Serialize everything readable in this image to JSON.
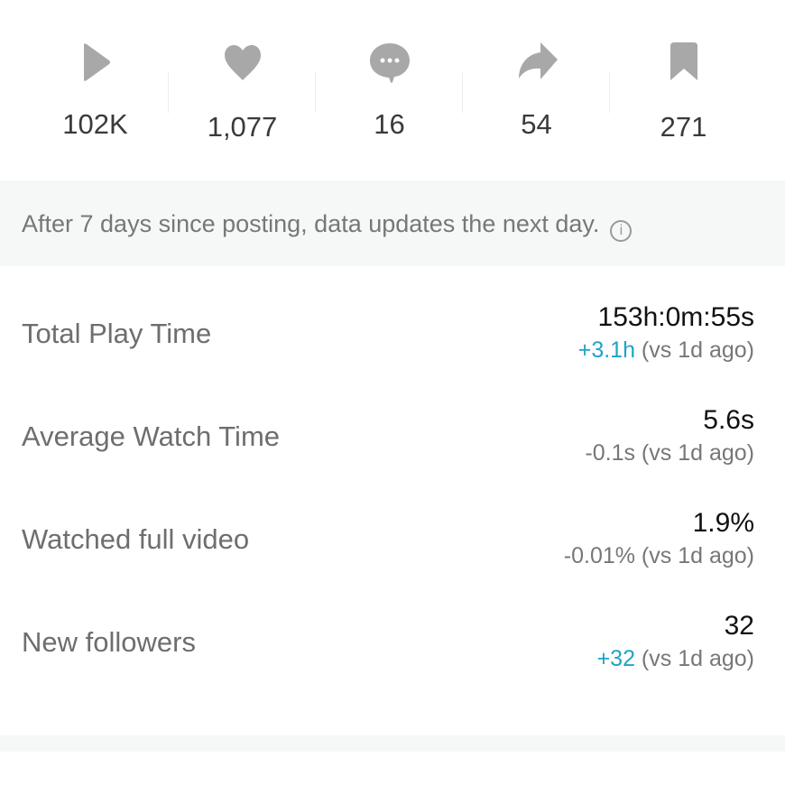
{
  "stats": [
    {
      "icon": "play-icon",
      "value": "102K"
    },
    {
      "icon": "heart-icon",
      "value": "1,077"
    },
    {
      "icon": "comment-icon",
      "value": "16"
    },
    {
      "icon": "share-icon",
      "value": "54"
    },
    {
      "icon": "bookmark-icon",
      "value": "271"
    }
  ],
  "notice": {
    "text": "After 7 days since posting, data updates the next day.",
    "icon": "info-icon",
    "icon_glyph": "i"
  },
  "metrics": [
    {
      "label": "Total Play Time",
      "value": "153h:0m:55s",
      "change": "+3.1h",
      "suffix": " (vs 1d ago)",
      "positive": true
    },
    {
      "label": "Average Watch Time",
      "value": "5.6s",
      "change": "-0.1s",
      "suffix": " (vs 1d ago)",
      "positive": false
    },
    {
      "label": "Watched full video",
      "value": "1.9%",
      "change": "-0.01%",
      "suffix": " (vs 1d ago)",
      "positive": false
    },
    {
      "label": "New followers",
      "value": "32",
      "change": "+32",
      "suffix": " (vs 1d ago)",
      "positive": true
    }
  ],
  "colors": {
    "icon": "#a8a8a8",
    "positive": "#1fa3c7",
    "band": "#f6f7f7"
  }
}
